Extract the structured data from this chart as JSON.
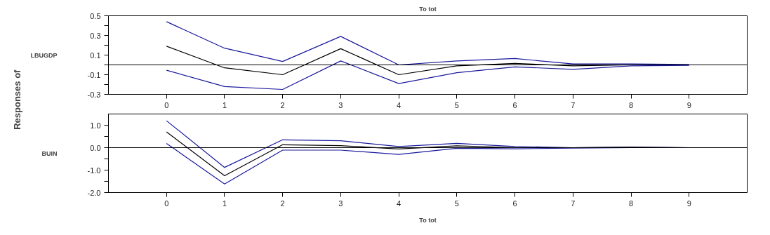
{
  "chart_data": [
    {
      "type": "line",
      "title": "To tot",
      "ylabel": "LBUGDP",
      "annotations": [
        "Responses of"
      ],
      "x": [
        0,
        1,
        2,
        3,
        4,
        5,
        6,
        7,
        8,
        9
      ],
      "series": [
        {
          "color": "#1a1a9c",
          "values": [
            0.44,
            0.17,
            0.035,
            0.29,
            0.0,
            0.04,
            0.065,
            0.01,
            0.01,
            0.005
          ]
        },
        {
          "color": "#000000",
          "values": [
            0.19,
            -0.03,
            -0.1,
            0.165,
            -0.1,
            -0.01,
            0.015,
            -0.01,
            0.0,
            0.0
          ]
        },
        {
          "color": "#1a1a9c",
          "values": [
            -0.055,
            -0.22,
            -0.25,
            0.04,
            -0.19,
            -0.08,
            -0.02,
            -0.045,
            -0.01,
            -0.005
          ]
        }
      ],
      "xlim": [
        -1,
        10
      ],
      "xticks": [
        0,
        1,
        2,
        3,
        4,
        5,
        6,
        7,
        8,
        9
      ],
      "ylim": [
        -0.3,
        0.5
      ],
      "yticks": [
        -0.3,
        {
          "value": -0.2,
          "label": null
        },
        -0.1,
        {
          "value": 0,
          "label": null
        },
        0.1,
        {
          "value": 0.2,
          "label": null
        },
        0.3,
        {
          "value": 0.4,
          "label": null
        },
        0.5
      ],
      "ref_lines": [
        {
          "axis": "y",
          "value": 0,
          "color": "#000000"
        }
      ],
      "grid": false
    },
    {
      "type": "line",
      "xlabel": "To tot",
      "ylabel": "BUIN",
      "x": [
        0,
        1,
        2,
        3,
        4,
        5,
        6,
        7,
        8,
        9
      ],
      "series": [
        {
          "color": "#1a1a9c",
          "values": [
            1.2,
            -0.88,
            0.35,
            0.31,
            0.05,
            0.19,
            0.05,
            0.0,
            0.03,
            0.0
          ]
        },
        {
          "color": "#000000",
          "values": [
            0.7,
            -1.25,
            0.13,
            0.09,
            -0.06,
            0.08,
            0.0,
            0.0,
            0.02,
            0.0
          ]
        },
        {
          "color": "#1a1a9c",
          "values": [
            0.19,
            -1.62,
            -0.11,
            -0.11,
            -0.3,
            -0.03,
            -0.05,
            -0.02,
            0.0,
            0.0
          ]
        }
      ],
      "xlim": [
        -1,
        10
      ],
      "xticks": [
        0,
        1,
        2,
        3,
        4,
        5,
        6,
        7,
        8,
        9
      ],
      "ylim": [
        -2.0,
        1.5
      ],
      "yticks": [
        {
          "value": -2,
          "label": "-2.0"
        },
        {
          "value": -1.5,
          "label": null
        },
        {
          "value": -1,
          "label": "-1.0"
        },
        {
          "value": -0.5,
          "label": null
        },
        {
          "value": 0,
          "label": "0.0"
        },
        {
          "value": 0.5,
          "label": null
        },
        {
          "value": 1,
          "label": "1.0"
        }
      ],
      "ref_lines": [
        {
          "axis": "y",
          "value": 0,
          "color": "#000000"
        }
      ],
      "grid": false
    }
  ]
}
